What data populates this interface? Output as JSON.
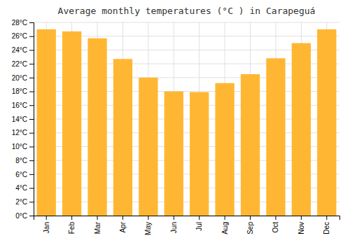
{
  "chart_data": {
    "type": "bar",
    "title": "Average monthly temperatures (°C ) in Carapeguá",
    "categories": [
      "Jan",
      "Feb",
      "Mar",
      "Apr",
      "May",
      "Jun",
      "Jul",
      "Aug",
      "Sep",
      "Oct",
      "Nov",
      "Dec"
    ],
    "values": [
      27.0,
      26.7,
      25.7,
      22.7,
      20.0,
      18.0,
      17.9,
      19.2,
      20.5,
      22.8,
      25.0,
      27.0
    ],
    "color": "#FFB733",
    "ylim": [
      0,
      28
    ],
    "yticks": [
      {
        "value": 0,
        "label": "0°C"
      },
      {
        "value": 2,
        "label": "2°C"
      },
      {
        "value": 4,
        "label": "4°C"
      },
      {
        "value": 6,
        "label": "6°C"
      },
      {
        "value": 8,
        "label": "8°C"
      },
      {
        "value": 10,
        "label": "10°C"
      },
      {
        "value": 12,
        "label": "12°C"
      },
      {
        "value": 14,
        "label": "14°C"
      },
      {
        "value": 16,
        "label": "16°C"
      },
      {
        "value": 18,
        "label": "18°C"
      },
      {
        "value": 20,
        "label": "20°C"
      },
      {
        "value": 22,
        "label": "22°C"
      },
      {
        "value": 24,
        "label": "24°C"
      },
      {
        "value": 26,
        "label": "26°C"
      },
      {
        "value": 28,
        "label": "28°C"
      }
    ],
    "grid": true
  }
}
